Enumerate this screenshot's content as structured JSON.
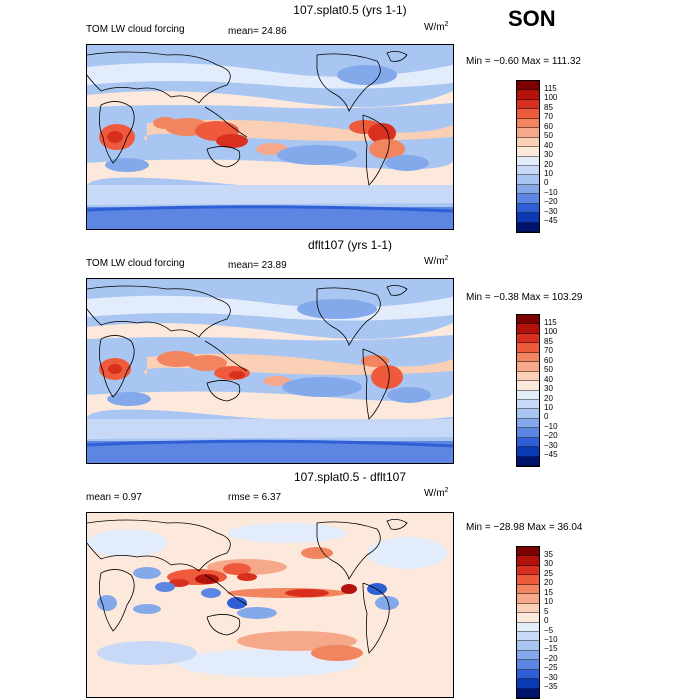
{
  "season": "SON",
  "panels": [
    {
      "title": "107.splat0.5 (yrs 1-1)",
      "left_label": "TOM LW cloud forcing",
      "stat1": "mean=  24.86",
      "stat2": "",
      "units": "W/m",
      "units_sup": "2",
      "minmax": "Min =  −0.60 Max = 111.32",
      "colorbar": {
        "labels": [
          "115",
          "100",
          "85",
          "70",
          "60",
          "50",
          "40",
          "30",
          "20",
          "10",
          "0",
          "−10",
          "−20",
          "−30",
          "−45"
        ],
        "colors": [
          "#7f0000",
          "#b3120d",
          "#d7301f",
          "#ef5a3c",
          "#f2845f",
          "#f6a98a",
          "#f9cfb6",
          "#fde9dc",
          "#e3ecfb",
          "#c7d9f6",
          "#a9c6f2",
          "#84a9ea",
          "#5c86e2",
          "#2f5fd6",
          "#0b3ab3",
          "#00146e"
        ]
      }
    },
    {
      "title": "dflt107 (yrs 1-1)",
      "left_label": "TOM LW cloud forcing",
      "stat1": "mean=  23.89",
      "stat2": "",
      "units": "W/m",
      "units_sup": "2",
      "minmax": "Min =  −0.38 Max = 103.29",
      "colorbar": {
        "labels": [
          "115",
          "100",
          "85",
          "70",
          "60",
          "50",
          "40",
          "30",
          "20",
          "10",
          "0",
          "−10",
          "−20",
          "−30",
          "−45"
        ],
        "colors": [
          "#7f0000",
          "#b3120d",
          "#d7301f",
          "#ef5a3c",
          "#f2845f",
          "#f6a98a",
          "#f9cfb6",
          "#fde9dc",
          "#e3ecfb",
          "#c7d9f6",
          "#a9c6f2",
          "#84a9ea",
          "#5c86e2",
          "#2f5fd6",
          "#0b3ab3",
          "#00146e"
        ]
      }
    },
    {
      "title": "107.splat0.5 - dflt107",
      "left_label": "mean =    0.97",
      "stat1": "rmse =   6.37",
      "stat2": "",
      "units": "W/m",
      "units_sup": "2",
      "minmax": "Min = −28.98 Max =  36.04",
      "colorbar": {
        "labels": [
          "35",
          "30",
          "25",
          "20",
          "15",
          "10",
          "5",
          "0",
          "−5",
          "−10",
          "−15",
          "−20",
          "−25",
          "−30",
          "−35"
        ],
        "colors": [
          "#7f0000",
          "#b3120d",
          "#d7301f",
          "#ef5a3c",
          "#f2845f",
          "#f6a98a",
          "#f9cfb6",
          "#fde9dc",
          "#e3ecfb",
          "#c7d9f6",
          "#a9c6f2",
          "#84a9ea",
          "#5c86e2",
          "#2f5fd6",
          "#0b3ab3",
          "#00146e"
        ]
      }
    }
  ],
  "chart_data": [
    {
      "type": "heatmap",
      "title": "107.splat0.5 (yrs 1-1)",
      "variable": "TOM LW cloud forcing",
      "units": "W/m2",
      "mean": 24.86,
      "min": -0.6,
      "max": 111.32,
      "levels": [
        -45,
        -30,
        -20,
        -10,
        0,
        10,
        20,
        30,
        40,
        50,
        60,
        70,
        85,
        100,
        115
      ]
    },
    {
      "type": "heatmap",
      "title": "dflt107 (yrs 1-1)",
      "variable": "TOM LW cloud forcing",
      "units": "W/m2",
      "mean": 23.89,
      "min": -0.38,
      "max": 103.29,
      "levels": [
        -45,
        -30,
        -20,
        -10,
        0,
        10,
        20,
        30,
        40,
        50,
        60,
        70,
        85,
        100,
        115
      ]
    },
    {
      "type": "heatmap",
      "title": "107.splat0.5 - dflt107",
      "units": "W/m2",
      "mean": 0.97,
      "rmse": 6.37,
      "min": -28.98,
      "max": 36.04,
      "levels": [
        -35,
        -30,
        -25,
        -20,
        -15,
        -10,
        -5,
        0,
        5,
        10,
        15,
        20,
        25,
        30,
        35
      ]
    }
  ]
}
